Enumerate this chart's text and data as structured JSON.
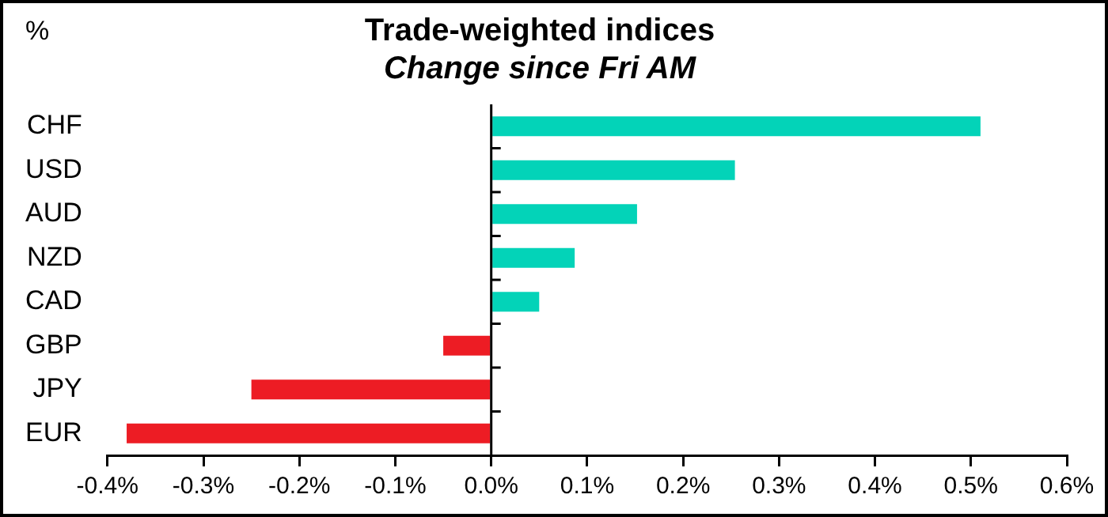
{
  "chart_data": {
    "type": "bar",
    "orientation": "horizontal",
    "title": "Trade-weighted indices",
    "subtitle": "Change since Fri AM",
    "annotations": [
      "%"
    ],
    "categories": [
      "CHF",
      "USD",
      "AUD",
      "NZD",
      "CAD",
      "GBP",
      "JPY",
      "EUR"
    ],
    "values": [
      0.51,
      0.254,
      0.152,
      0.087,
      0.05,
      -0.05,
      -0.25,
      -0.38
    ],
    "colors": [
      "#03d3b8",
      "#03d3b8",
      "#03d3b8",
      "#03d3b8",
      "#03d3b8",
      "#ed1c24",
      "#ed1c24",
      "#ed1c24"
    ],
    "xlim": [
      -0.4,
      0.6
    ],
    "xticks": [
      {
        "value": -0.4,
        "label": "-0.4%"
      },
      {
        "value": -0.3,
        "label": "-0.3%"
      },
      {
        "value": -0.2,
        "label": "-0.2%"
      },
      {
        "value": -0.1,
        "label": "-0.1%"
      },
      {
        "value": 0,
        "label": "0.0%"
      },
      {
        "value": 0.1,
        "label": "0.1%"
      },
      {
        "value": 0.2,
        "label": "0.2%"
      },
      {
        "value": 0.3,
        "label": "0.3%"
      },
      {
        "value": 0.4,
        "label": "0.4%"
      },
      {
        "value": 0.5,
        "label": "0.5%"
      },
      {
        "value": 0.6,
        "label": "0.6%"
      }
    ],
    "legend": false
  }
}
